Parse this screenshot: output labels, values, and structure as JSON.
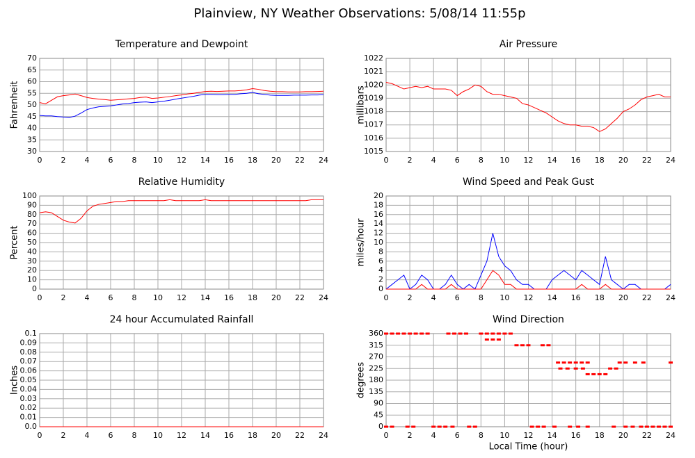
{
  "title": "Plainview, NY Weather Observations: 5/08/14 11:55p",
  "chart_data": [
    {
      "type": "line",
      "title": "Temperature and Dewpoint",
      "ylabel": "Fahrenheit",
      "x": [
        0,
        0.5,
        1,
        1.5,
        2,
        2.5,
        3,
        3.5,
        4,
        4.5,
        5,
        5.5,
        6,
        6.5,
        7,
        7.5,
        8,
        8.5,
        9,
        9.5,
        10,
        10.5,
        11,
        11.5,
        12,
        12.5,
        13,
        13.5,
        14,
        14.5,
        15,
        15.5,
        16,
        16.5,
        17,
        17.5,
        18,
        18.5,
        19,
        19.5,
        20,
        20.5,
        21,
        21.5,
        22,
        22.5,
        23,
        23.5,
        24
      ],
      "series": [
        {
          "color": "#ff0000",
          "values": [
            51,
            50.5,
            52,
            53.5,
            54,
            54.3,
            54.7,
            54,
            53.2,
            52.8,
            52.5,
            52.3,
            52,
            52.2,
            52.4,
            52.6,
            52.8,
            53.2,
            53.4,
            52.8,
            53,
            53.3,
            53.6,
            54,
            54.3,
            54.7,
            55,
            55.4,
            55.8,
            55.9,
            55.8,
            55.9,
            56,
            56,
            56.2,
            56.5,
            57,
            56.7,
            56.2,
            55.9,
            55.7,
            55.7,
            55.6,
            55.6,
            55.6,
            55.7,
            55.7,
            55.8,
            55.9
          ]
        },
        {
          "color": "#0000ff",
          "values": [
            45.5,
            45.3,
            45.3,
            45,
            44.8,
            44.6,
            45.2,
            46.5,
            48,
            48.7,
            49.2,
            49.4,
            49.6,
            50,
            50.4,
            50.6,
            51,
            51.2,
            51.3,
            51,
            51.3,
            51.6,
            52,
            52.5,
            52.9,
            53.3,
            53.7,
            54.2,
            54.5,
            54.5,
            54.4,
            54.4,
            54.5,
            54.5,
            54.8,
            55,
            55.4,
            54.8,
            54.5,
            54.2,
            54.1,
            54.1,
            54.1,
            54.2,
            54.2,
            54.2,
            54.3,
            54.3,
            54.4
          ]
        }
      ],
      "xlim": [
        0,
        24
      ],
      "xticks": [
        0,
        2,
        4,
        6,
        8,
        10,
        12,
        14,
        16,
        18,
        20,
        22,
        24
      ],
      "ylim": [
        30,
        70
      ],
      "yticks": [
        30,
        35,
        40,
        45,
        50,
        55,
        60,
        65,
        70
      ],
      "grid": true
    },
    {
      "type": "line",
      "title": "Air Pressure",
      "ylabel": "millibars",
      "x": [
        0,
        0.5,
        1,
        1.5,
        2,
        2.5,
        3,
        3.5,
        4,
        4.5,
        5,
        5.5,
        6,
        6.5,
        7,
        7.5,
        8,
        8.5,
        9,
        9.5,
        10,
        10.5,
        11,
        11.5,
        12,
        12.5,
        13,
        13.5,
        14,
        14.5,
        15,
        15.5,
        16,
        16.5,
        17,
        17.5,
        18,
        18.5,
        19,
        19.5,
        20,
        20.5,
        21,
        21.5,
        22,
        22.5,
        23,
        23.5,
        24
      ],
      "series": [
        {
          "color": "#ff0000",
          "values": [
            1020.2,
            1020.1,
            1019.9,
            1019.7,
            1019.8,
            1019.9,
            1019.8,
            1019.9,
            1019.7,
            1019.7,
            1019.7,
            1019.6,
            1019.2,
            1019.5,
            1019.7,
            1020,
            1019.9,
            1019.5,
            1019.3,
            1019.3,
            1019.2,
            1019.1,
            1019,
            1018.6,
            1018.5,
            1018.3,
            1018.1,
            1017.9,
            1017.6,
            1017.3,
            1017.1,
            1017,
            1017,
            1016.9,
            1016.9,
            1016.8,
            1016.5,
            1016.7,
            1017.1,
            1017.5,
            1018,
            1018.2,
            1018.5,
            1018.9,
            1019.1,
            1019.2,
            1019.3,
            1019.1,
            1019.1
          ]
        }
      ],
      "xlim": [
        0,
        24
      ],
      "xticks": [
        0,
        2,
        4,
        6,
        8,
        10,
        12,
        14,
        16,
        18,
        20,
        22,
        24
      ],
      "ylim": [
        1015,
        1022
      ],
      "yticks": [
        1015,
        1016,
        1017,
        1018,
        1019,
        1020,
        1021,
        1022
      ],
      "grid": true
    },
    {
      "type": "line",
      "title": "Relative Humidity",
      "ylabel": "Percent",
      "x": [
        0,
        0.5,
        1,
        1.5,
        2,
        2.5,
        3,
        3.5,
        4,
        4.5,
        5,
        5.5,
        6,
        6.5,
        7,
        7.5,
        8,
        8.5,
        9,
        9.5,
        10,
        10.5,
        11,
        11.5,
        12,
        12.5,
        13,
        13.5,
        14,
        14.5,
        15,
        15.5,
        16,
        16.5,
        17,
        17.5,
        18,
        18.5,
        19,
        19.5,
        20,
        20.5,
        21,
        21.5,
        22,
        22.5,
        23,
        23.5,
        24
      ],
      "series": [
        {
          "color": "#ff0000",
          "values": [
            82,
            83,
            82,
            78,
            74,
            72,
            71,
            76,
            84,
            89,
            91,
            92,
            93,
            94,
            94,
            95,
            95,
            95,
            95,
            95,
            95,
            95,
            96,
            95,
            95,
            95,
            95,
            95,
            96,
            95,
            95,
            95,
            95,
            95,
            95,
            95,
            95,
            95,
            95,
            95,
            95,
            95,
            95,
            95,
            95,
            95,
            96,
            96,
            96
          ]
        }
      ],
      "xlim": [
        0,
        24
      ],
      "xticks": [
        0,
        2,
        4,
        6,
        8,
        10,
        12,
        14,
        16,
        18,
        20,
        22,
        24
      ],
      "ylim": [
        0,
        100
      ],
      "yticks": [
        0,
        10,
        20,
        30,
        40,
        50,
        60,
        70,
        80,
        90,
        100
      ],
      "grid": true
    },
    {
      "type": "line",
      "title": "Wind Speed and Peak Gust",
      "ylabel": "miles/hour",
      "x": [
        0,
        0.5,
        1,
        1.5,
        2,
        2.5,
        3,
        3.5,
        4,
        4.5,
        5,
        5.5,
        6,
        6.5,
        7,
        7.5,
        8,
        8.5,
        9,
        9.5,
        10,
        10.5,
        11,
        11.5,
        12,
        12.5,
        13,
        13.5,
        14,
        14.5,
        15,
        15.5,
        16,
        16.5,
        17,
        17.5,
        18,
        18.5,
        19,
        19.5,
        20,
        20.5,
        21,
        21.5,
        22,
        22.5,
        23,
        23.5,
        24
      ],
      "series": [
        {
          "color": "#0000ff",
          "values": [
            0,
            1,
            2,
            3,
            0,
            1,
            3,
            2,
            0,
            0,
            1,
            3,
            1,
            0,
            1,
            0,
            3,
            6,
            12,
            7,
            5,
            4,
            2,
            1,
            1,
            0,
            0,
            0,
            2,
            3,
            4,
            3,
            2,
            4,
            3,
            2,
            1,
            7,
            2,
            1,
            0,
            1,
            1,
            0,
            0,
            0,
            0,
            0,
            1
          ]
        },
        {
          "color": "#ff0000",
          "values": [
            0,
            0,
            0,
            0,
            0,
            0,
            1,
            0,
            0,
            0,
            0,
            1,
            0,
            0,
            0,
            0,
            0,
            2,
            4,
            3,
            1,
            1,
            0,
            0,
            0,
            0,
            0,
            0,
            0,
            0,
            0,
            0,
            0,
            1,
            0,
            0,
            0,
            1,
            0,
            0,
            0,
            0,
            0,
            0,
            0,
            0,
            0,
            0,
            0
          ]
        }
      ],
      "xlim": [
        0,
        24
      ],
      "xticks": [
        0,
        2,
        4,
        6,
        8,
        10,
        12,
        14,
        16,
        18,
        20,
        22,
        24
      ],
      "ylim": [
        0,
        20
      ],
      "yticks": [
        0,
        2,
        4,
        6,
        8,
        10,
        12,
        14,
        16,
        18,
        20
      ],
      "grid": true
    },
    {
      "type": "line",
      "title": "24 hour Accumulated Rainfall",
      "ylabel": "Inches",
      "x": [
        0,
        2,
        4,
        6,
        8,
        10,
        12,
        14,
        16,
        18,
        20,
        22,
        24
      ],
      "series": [
        {
          "color": "#ff0000",
          "values": [
            0,
            0,
            0,
            0,
            0,
            0,
            0,
            0,
            0,
            0,
            0,
            0,
            0
          ]
        }
      ],
      "xlim": [
        0,
        24
      ],
      "xticks": [
        0,
        2,
        4,
        6,
        8,
        10,
        12,
        14,
        16,
        18,
        20,
        22,
        24
      ],
      "ylim": [
        0,
        0.1
      ],
      "yticks": [
        {
          "value": 0,
          "label": "0.0"
        },
        0.01,
        0.02,
        0.03,
        0.04,
        0.05,
        0.06,
        0.07,
        0.08,
        0.09,
        0.1
      ],
      "grid": true
    },
    {
      "type": "scatter",
      "title": "Wind Direction",
      "ylabel": "degrees",
      "xlabel": "Local Time (hour)",
      "x": [
        0,
        0.5,
        1,
        1.5,
        2,
        2.5,
        3,
        3.5,
        5.25,
        5.75,
        6.25,
        6.75,
        8,
        8.5,
        9,
        9.5,
        10,
        10.5,
        8.5,
        9,
        9.5,
        11,
        11.5,
        12,
        13.2,
        13.7,
        14.5,
        15,
        15.5,
        16,
        16.5,
        17,
        19.7,
        20.2,
        21,
        21.7,
        24,
        14.7,
        15.3,
        16,
        16.6,
        18.9,
        19.4,
        17,
        17.5,
        18,
        18.5,
        0,
        0.5,
        1.8,
        2.3,
        4,
        4.5,
        5,
        5.6,
        7,
        7.5,
        12.3,
        12.8,
        13.3,
        14.2,
        15.5,
        16.2,
        17,
        19.2,
        20.2,
        20.8,
        21.5,
        22,
        22.5,
        23,
        23.5,
        24
      ],
      "series": [
        {
          "color": "#ff0000",
          "values": [
            360,
            360,
            360,
            360,
            360,
            360,
            360,
            360,
            360,
            360,
            360,
            360,
            360,
            360,
            360,
            360,
            360,
            360,
            337,
            337,
            337,
            315,
            315,
            315,
            315,
            315,
            248,
            248,
            248,
            248,
            248,
            248,
            248,
            248,
            248,
            248,
            248,
            225,
            225,
            225,
            225,
            225,
            225,
            203,
            203,
            203,
            203,
            0,
            0,
            0,
            0,
            0,
            0,
            0,
            0,
            0,
            0,
            0,
            0,
            0,
            0,
            0,
            0,
            0,
            0,
            0,
            0,
            0,
            0,
            0,
            0,
            0,
            0
          ]
        }
      ],
      "xlim": [
        0,
        24
      ],
      "xticks": [
        0,
        2,
        4,
        6,
        8,
        10,
        12,
        14,
        16,
        18,
        20,
        22,
        24
      ],
      "ylim": [
        0,
        360
      ],
      "yticks": [
        0,
        45,
        90,
        135,
        180,
        225,
        270,
        315,
        360
      ],
      "grid": true
    }
  ]
}
